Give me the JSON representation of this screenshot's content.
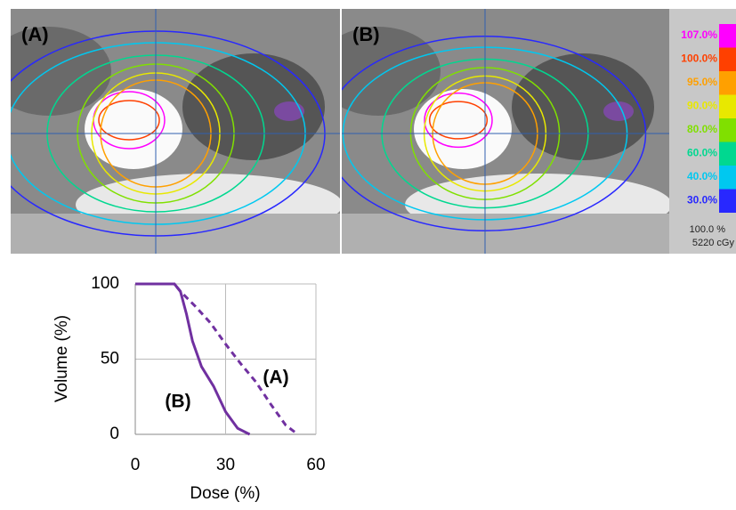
{
  "images": {
    "panels": [
      {
        "label": "(A)"
      },
      {
        "label": "(B)"
      }
    ],
    "colorbar": {
      "levels": [
        {
          "label": "107.0%",
          "color": "#ff00ff"
        },
        {
          "label": "100.0%",
          "color": "#ff4000"
        },
        {
          "label": "95.0%",
          "color": "#ffa000"
        },
        {
          "label": "90.0%",
          "color": "#e8e800"
        },
        {
          "label": "80.0%",
          "color": "#80e000"
        },
        {
          "label": "60.0%",
          "color": "#00d890"
        },
        {
          "label": "40.0%",
          "color": "#00c8f0"
        },
        {
          "label": "30.0%",
          "color": "#2828ff"
        }
      ],
      "footer": [
        "100.0 %",
        "5220 cGy"
      ]
    }
  },
  "chart_data": {
    "type": "line",
    "xlabel": "Dose (%)",
    "ylabel": "Volume (%)",
    "xlim": [
      0,
      60
    ],
    "ylim": [
      0,
      100
    ],
    "xticks": [
      0,
      30,
      60
    ],
    "yticks": [
      0,
      50,
      100
    ],
    "grid": true,
    "series": [
      {
        "name": "(A)",
        "color": "#7030a0",
        "dash": true,
        "x": [
          0,
          13,
          15,
          20,
          25,
          30,
          35,
          40,
          45,
          50,
          54
        ],
        "values": [
          100,
          100,
          95,
          85,
          74,
          60,
          47,
          35,
          20,
          6,
          0
        ]
      },
      {
        "name": "(B)",
        "color": "#7030a0",
        "dash": false,
        "x": [
          0,
          13,
          15,
          17,
          19,
          22,
          26,
          30,
          34,
          38
        ],
        "values": [
          100,
          100,
          95,
          80,
          62,
          45,
          32,
          15,
          4,
          0
        ]
      }
    ]
  }
}
